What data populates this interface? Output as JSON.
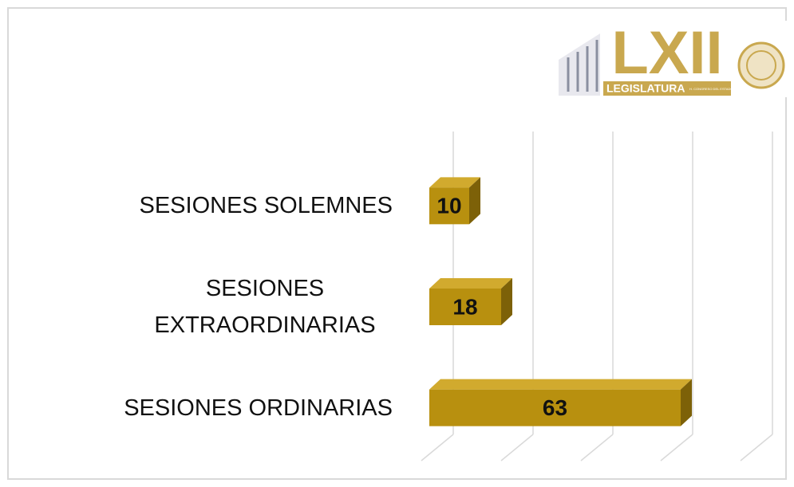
{
  "logo": {
    "title": "LXII",
    "subtitle": "LEGISLATURA",
    "caption": "H. CONGRESO DEL ESTADO DE SINALOA"
  },
  "chart_data": {
    "type": "bar",
    "orientation": "horizontal",
    "categories": [
      "SESIONES SOLEMNES",
      "SESIONES EXTRAORDINARIAS",
      "SESIONES ORDINARIAS"
    ],
    "values": [
      10,
      18,
      63
    ],
    "color": "#b8900f",
    "xlim": [
      0,
      80
    ],
    "xticks": [
      0,
      20,
      40,
      60,
      80
    ],
    "grid": true
  }
}
